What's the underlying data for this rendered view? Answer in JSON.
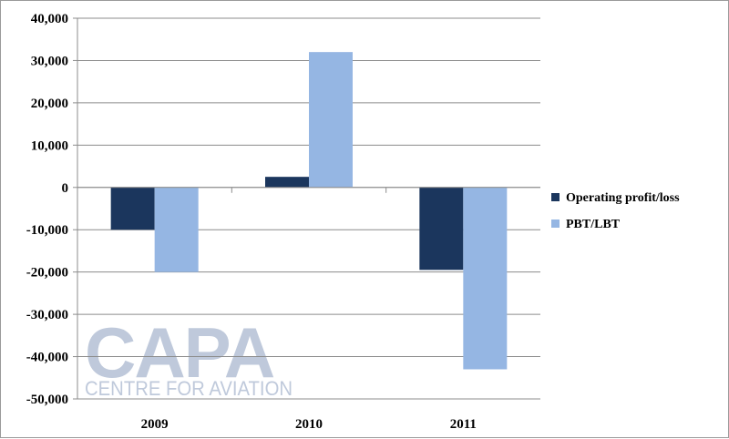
{
  "chart_data": {
    "type": "bar",
    "title": "",
    "xlabel": "",
    "ylabel": "",
    "categories": [
      "2009",
      "2010",
      "2011"
    ],
    "series": [
      {
        "name": "Operating profit/loss",
        "color": "#1b365d",
        "values": [
          -10000,
          2500,
          -19500
        ]
      },
      {
        "name": "PBT/LBT",
        "color": "#95b6e3",
        "values": [
          -20000,
          32000,
          -43000
        ]
      }
    ],
    "ylim": [
      -50000,
      40000
    ],
    "yticks": [
      40000,
      30000,
      20000,
      10000,
      0,
      -10000,
      -20000,
      -30000,
      -40000,
      -50000
    ],
    "ytick_labels": [
      "40,000",
      "30,000",
      "20,000",
      "10,000",
      "0",
      "-10,000",
      "-20,000",
      "-30,000",
      "-40,000",
      "-50,000"
    ],
    "grid": true,
    "legend_position": "right"
  },
  "watermark": {
    "logo_text": "CAPA",
    "tagline": "CENTRE FOR AVIATION"
  }
}
